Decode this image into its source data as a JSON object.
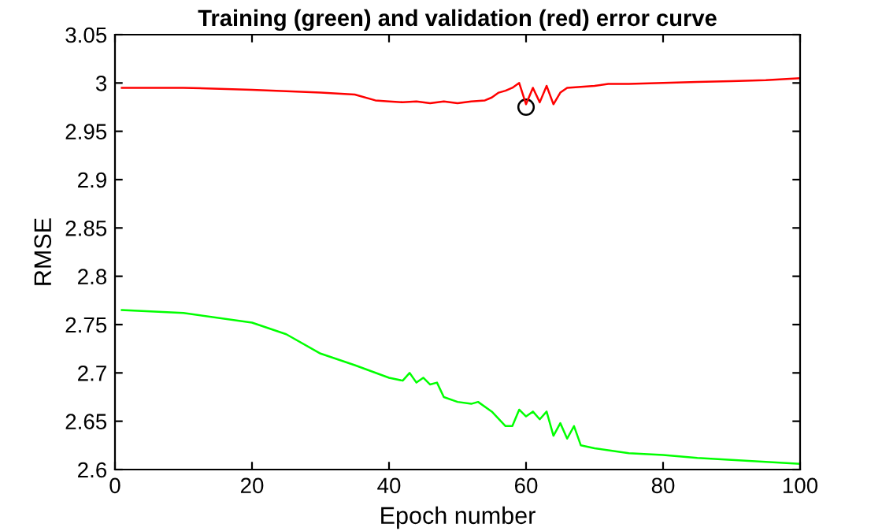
{
  "chart_data": {
    "type": "line",
    "title": "Training (green) and validation (red) error curve",
    "xlabel": "Epoch number",
    "ylabel": "RMSE",
    "xlim": [
      0,
      100
    ],
    "xticks": [
      0,
      20,
      40,
      60,
      80,
      100
    ],
    "ylim": [
      2.6,
      3.05
    ],
    "yticks": [
      2.6,
      2.65,
      2.7,
      2.75,
      2.8,
      2.85,
      2.9,
      2.95,
      3,
      3.05
    ],
    "grid": false,
    "legend": false,
    "series": [
      {
        "color": "#ff0000",
        "x": [
          1,
          10,
          20,
          30,
          35,
          38,
          40,
          42,
          44,
          46,
          48,
          50,
          52,
          54,
          55,
          56,
          57,
          58,
          59,
          60,
          61,
          62,
          63,
          64,
          65,
          66,
          68,
          70,
          72,
          75,
          80,
          85,
          90,
          95,
          100
        ],
        "values": [
          2.995,
          2.995,
          2.993,
          2.99,
          2.988,
          2.982,
          2.981,
          2.98,
          2.981,
          2.979,
          2.981,
          2.979,
          2.981,
          2.982,
          2.985,
          2.99,
          2.992,
          2.995,
          3.0,
          2.978,
          2.995,
          2.98,
          2.997,
          2.978,
          2.99,
          2.995,
          2.996,
          2.997,
          2.999,
          2.999,
          3.0,
          3.001,
          3.002,
          3.003,
          3.005
        ]
      },
      {
        "color": "#00ff00",
        "x": [
          1,
          10,
          20,
          25,
          30,
          35,
          40,
          42,
          43,
          44,
          45,
          46,
          47,
          48,
          50,
          52,
          53,
          55,
          57,
          58,
          59,
          60,
          61,
          62,
          63,
          64,
          65,
          66,
          67,
          68,
          70,
          72,
          75,
          80,
          85,
          90,
          95,
          100
        ],
        "values": [
          2.765,
          2.762,
          2.752,
          2.74,
          2.72,
          2.708,
          2.695,
          2.692,
          2.7,
          2.69,
          2.695,
          2.688,
          2.69,
          2.675,
          2.67,
          2.668,
          2.67,
          2.66,
          2.645,
          2.645,
          2.662,
          2.655,
          2.66,
          2.652,
          2.66,
          2.635,
          2.648,
          2.632,
          2.645,
          2.625,
          2.622,
          2.62,
          2.617,
          2.615,
          2.612,
          2.61,
          2.608,
          2.606
        ]
      },
      {
        "type": "scatter",
        "color": "#000000",
        "marker": "circle",
        "x": [
          60
        ],
        "values": [
          2.975
        ]
      }
    ]
  }
}
